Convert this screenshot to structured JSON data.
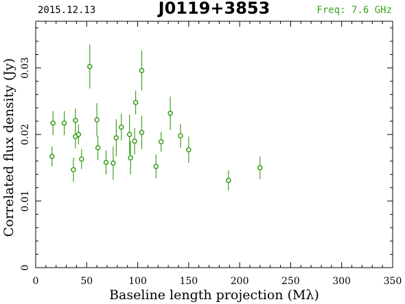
{
  "header": {
    "date": "2015.12.13",
    "source": "J0119+3853",
    "freq": "Freq: 7.6 GHz"
  },
  "colors": {
    "data": "#3ca020",
    "freq_text": "#3ca020",
    "axis": "#000000"
  },
  "chart_data": {
    "type": "scatter",
    "title": "J0119+3853",
    "xlabel": "Baseline length projection (Mλ)",
    "ylabel": "Correlated flux density (Jy)",
    "xlim": [
      0,
      350
    ],
    "ylim": [
      0,
      0.037
    ],
    "x_ticks": [
      0,
      50,
      100,
      150,
      200,
      250,
      300,
      350
    ],
    "y_ticks": [
      0,
      0.01,
      0.02,
      0.03
    ],
    "x_tick_labels": [
      "0",
      "50",
      "100",
      "150",
      "200",
      "250",
      "300",
      "350"
    ],
    "y_tick_labels": [
      "0",
      "0.01",
      "0.02",
      "0.03"
    ],
    "grid": false,
    "marker": "open-circle-with-errorbar",
    "points": [
      {
        "x": 16,
        "y": 0.0167,
        "err": 0.0015
      },
      {
        "x": 17,
        "y": 0.0217,
        "err": 0.0018
      },
      {
        "x": 28,
        "y": 0.0217,
        "err": 0.0018
      },
      {
        "x": 37,
        "y": 0.0147,
        "err": 0.0018
      },
      {
        "x": 39,
        "y": 0.0197,
        "err": 0.0018
      },
      {
        "x": 39,
        "y": 0.0221,
        "err": 0.0018
      },
      {
        "x": 42,
        "y": 0.02,
        "err": 0.0015
      },
      {
        "x": 45,
        "y": 0.0163,
        "err": 0.0015
      },
      {
        "x": 53,
        "y": 0.0302,
        "err": 0.0033
      },
      {
        "x": 60,
        "y": 0.0222,
        "err": 0.0025
      },
      {
        "x": 61,
        "y": 0.018,
        "err": 0.0018
      },
      {
        "x": 69,
        "y": 0.0158,
        "err": 0.0018
      },
      {
        "x": 76,
        "y": 0.0157,
        "err": 0.0025
      },
      {
        "x": 79,
        "y": 0.0195,
        "err": 0.0028
      },
      {
        "x": 84,
        "y": 0.0211,
        "err": 0.002
      },
      {
        "x": 92,
        "y": 0.02,
        "err": 0.003
      },
      {
        "x": 93,
        "y": 0.0165,
        "err": 0.0025
      },
      {
        "x": 97,
        "y": 0.019,
        "err": 0.002
      },
      {
        "x": 98,
        "y": 0.0248,
        "err": 0.0018
      },
      {
        "x": 104,
        "y": 0.0296,
        "err": 0.003
      },
      {
        "x": 104,
        "y": 0.0203,
        "err": 0.0025
      },
      {
        "x": 118,
        "y": 0.0152,
        "err": 0.0018
      },
      {
        "x": 123,
        "y": 0.0189,
        "err": 0.0015
      },
      {
        "x": 132,
        "y": 0.0232,
        "err": 0.0025
      },
      {
        "x": 142,
        "y": 0.0198,
        "err": 0.0018
      },
      {
        "x": 150,
        "y": 0.0177,
        "err": 0.002
      },
      {
        "x": 189,
        "y": 0.0131,
        "err": 0.0015
      },
      {
        "x": 220,
        "y": 0.015,
        "err": 0.0017
      }
    ]
  }
}
